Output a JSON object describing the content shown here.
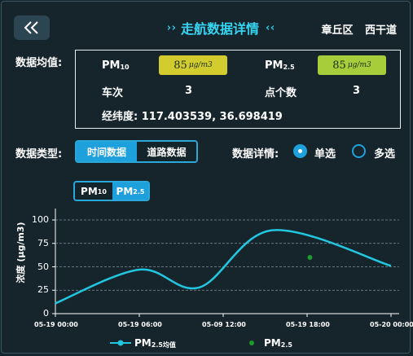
{
  "header": {
    "title": "走航数据详情",
    "title_arrows_left": "› ›",
    "title_arrows_right": "‹ ‹",
    "location": {
      "district": "章丘区",
      "road": "西干道"
    }
  },
  "average": {
    "label": "数据均值:",
    "pm10": {
      "name": "PM",
      "sub": "10",
      "value": "85",
      "unit": "μg/m3"
    },
    "pm25": {
      "name": "PM",
      "sub": "2.5",
      "value": "85",
      "unit": "μg/m3"
    },
    "trips": {
      "label": "车次",
      "value": "3"
    },
    "points": {
      "label": "点个数",
      "value": "3"
    },
    "coords": {
      "label": "经纬度:",
      "value": "117.403539, 36.698419"
    },
    "colors": {
      "pm10_pill": "#d3cc2e",
      "pm25_pill": "#a8cd3b"
    }
  },
  "data_type": {
    "label": "数据类型:",
    "options": [
      "时间数据",
      "道路数据"
    ],
    "selected": 0
  },
  "data_detail": {
    "label": "数据详情:",
    "options": [
      "单选",
      "多选"
    ],
    "selected": 0
  },
  "pollutant_toggle": {
    "options": [
      {
        "name": "PM",
        "sub": "10"
      },
      {
        "name": "PM",
        "sub": "2.5"
      }
    ],
    "selected": 1
  },
  "chart_data": {
    "type": "line",
    "ylabel": "浓度 (μg/m3)",
    "ylim": [
      0,
      100
    ],
    "yticks": [
      0,
      25,
      50,
      75,
      100
    ],
    "xticks": [
      "05-19 00:00",
      "05-19 06:00",
      "05-09 12:00",
      "05-19 18:00",
      "05-20 00:00"
    ],
    "xlim": [
      0,
      24
    ],
    "grid": "dashed-horizontal",
    "legend_placement": "bottom-center",
    "series": [
      {
        "name": "PM2.5均值",
        "kind": "smooth-line",
        "color": "#22c6df",
        "x": [
          0,
          6,
          10.3,
          15.5,
          24
        ],
        "y": [
          11,
          47,
          28,
          89,
          51
        ]
      },
      {
        "name": "PM2.5",
        "kind": "scatter",
        "color": "#1d9b2a",
        "x": [
          18.2
        ],
        "y": [
          60
        ]
      }
    ],
    "legend": [
      {
        "label": "PM",
        "sub": "2.5均值"
      },
      {
        "label": "PM",
        "sub": "2.5"
      }
    ]
  }
}
